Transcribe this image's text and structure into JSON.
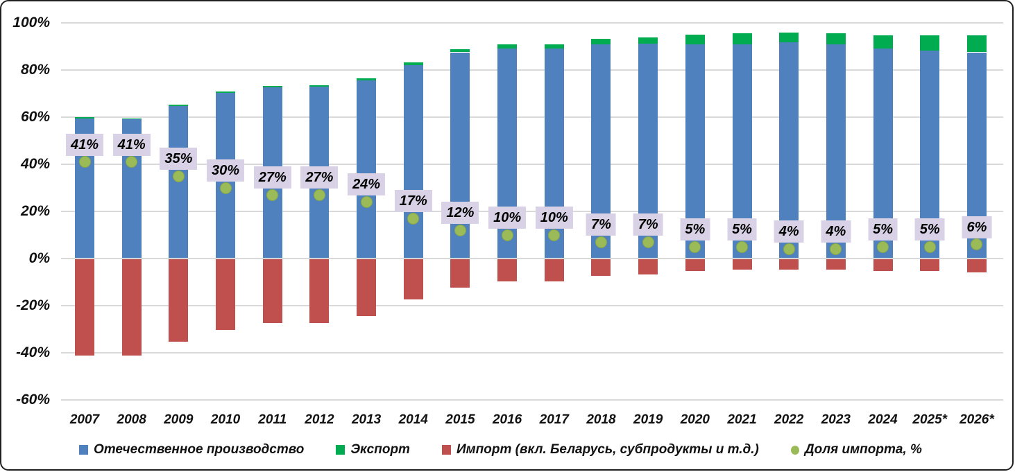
{
  "chart_data": {
    "type": "bar",
    "title": "",
    "xlabel": "",
    "ylabel": "",
    "categories": [
      "2007",
      "2008",
      "2009",
      "2010",
      "2011",
      "2012",
      "2013",
      "2014",
      "2015",
      "2016",
      "2017",
      "2018",
      "2019",
      "2020",
      "2021",
      "2022",
      "2023",
      "2024",
      "2025*",
      "2026*"
    ],
    "series": [
      {
        "name": "Отечественное производство",
        "type": "bar",
        "stack": "main",
        "color": "#4E81BD",
        "values": [
          59.5,
          59.0,
          64.7,
          70.3,
          72.7,
          73.0,
          75.7,
          82.0,
          87.5,
          89.2,
          89.0,
          91.0,
          91.2,
          91.0,
          91.0,
          91.8,
          91.0,
          89.2,
          88.2,
          87.5
        ]
      },
      {
        "name": "Экспорт",
        "type": "bar",
        "stack": "main",
        "color": "#00AC4F",
        "values": [
          0.4,
          0.4,
          0.5,
          0.5,
          0.4,
          0.4,
          0.7,
          1.3,
          1.2,
          1.7,
          2.0,
          2.3,
          2.6,
          4.0,
          4.5,
          4.2,
          4.6,
          5.5,
          6.5,
          7.3
        ]
      },
      {
        "name": "Импорт (вкл. Беларусь, субпродукты и т.д.)",
        "type": "bar",
        "color": "#C0504D",
        "values": [
          -41,
          -41,
          -35,
          -30,
          -27,
          -27,
          -24,
          -17,
          -12,
          -9.5,
          -9.5,
          -7,
          -6.5,
          -5,
          -4.5,
          -4.5,
          -4.5,
          -5,
          -5,
          -5.5
        ]
      },
      {
        "name": "Доля импорта, %",
        "type": "scatter",
        "color": "#9BBB59",
        "label_bg": "#D9D2E7",
        "values": [
          41,
          41,
          35,
          30,
          27,
          27,
          24,
          17,
          12,
          10,
          10,
          7,
          7,
          5,
          5,
          4,
          4,
          5,
          5,
          6
        ],
        "labels": [
          "41%",
          "41%",
          "35%",
          "30%",
          "27%",
          "27%",
          "24%",
          "17%",
          "12%",
          "10%",
          "10%",
          "7%",
          "7%",
          "5%",
          "5%",
          "4%",
          "4%",
          "5%",
          "5%",
          "6%"
        ]
      }
    ],
    "ylim": [
      -60,
      100
    ],
    "yticks": {
      "values": [
        100,
        80,
        60,
        40,
        20,
        0,
        -20,
        -40,
        -60
      ],
      "labels": [
        "100%",
        "80%",
        "60%",
        "40%",
        "20%",
        "0%",
        "-20%",
        "-40%",
        "-60%"
      ]
    },
    "grid": true,
    "gridline_color": "#d9d9d9",
    "legend_position": "bottom"
  },
  "legend": {
    "items": [
      {
        "label": "Отечественное  производство",
        "color": "#4E81BD",
        "marker": "square"
      },
      {
        "label": "Экспорт",
        "color": "#00AC4F",
        "marker": "square"
      },
      {
        "label": "Импорт (вкл. Беларусь, субпродукты и т.д.)",
        "color": "#C0504D",
        "marker": "square"
      },
      {
        "label": "Доля импорта, %",
        "color": "#9BBB59",
        "marker": "circle"
      }
    ]
  },
  "colors": {
    "background": "#FFFFFF",
    "border": "#1F1F1F",
    "gridline": "#D9D9D9",
    "text": "#111111",
    "data_label_bg": "#D9D2E7"
  }
}
